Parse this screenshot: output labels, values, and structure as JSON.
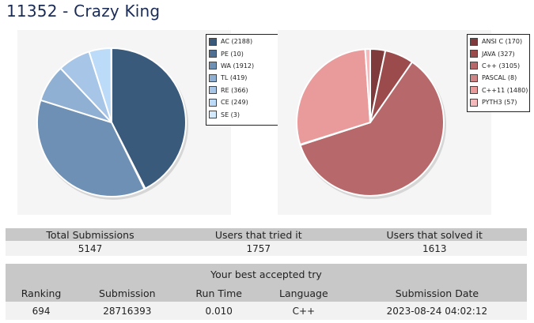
{
  "page": {
    "title": "11352 - Crazy King"
  },
  "chart_data": [
    {
      "type": "pie",
      "title": "",
      "legend_position": "top-right",
      "categories": [
        "AC",
        "PE",
        "WA",
        "TL",
        "RE",
        "CE",
        "SE"
      ],
      "values": [
        2188,
        10,
        1912,
        419,
        366,
        249,
        3
      ],
      "labels": [
        "AC (2188)",
        "PE (10)",
        "WA (1912)",
        "TL (419)",
        "RE (366)",
        "CE (249)",
        "SE (3)"
      ],
      "colors": [
        "#3a5a7c",
        "#4f6f93",
        "#6d90b4",
        "#8fb0d3",
        "#a7c5e7",
        "#bcdbf8",
        "#d3e9fc"
      ]
    },
    {
      "type": "pie",
      "title": "",
      "legend_position": "top-right",
      "categories": [
        "ANSI C",
        "JAVA",
        "C++",
        "PASCAL",
        "C++11",
        "PYTH3"
      ],
      "values": [
        170,
        327,
        3105,
        8,
        1480,
        57
      ],
      "labels": [
        "ANSI C (170)",
        "JAVA (327)",
        "C++ (3105)",
        "PASCAL (8)",
        "C++11 (1480)",
        "PYTH3 (57)"
      ],
      "colors": [
        "#7f3a3c",
        "#9c4b4d",
        "#b7686a",
        "#cf8485",
        "#e99a9b",
        "#f5b9bb"
      ]
    }
  ],
  "submissions_table": {
    "headers": [
      "Total Submissions",
      "Users that tried it",
      "Users that solved it"
    ],
    "values": [
      "5147",
      "1757",
      "1613"
    ]
  },
  "best_try": {
    "caption": "Your best accepted try",
    "headers": [
      "Ranking",
      "Submission",
      "Run Time",
      "Language",
      "Submission Date"
    ],
    "values": [
      "694",
      "28716393",
      "0.010",
      "C++",
      "2023-08-24 04:02:12"
    ]
  }
}
